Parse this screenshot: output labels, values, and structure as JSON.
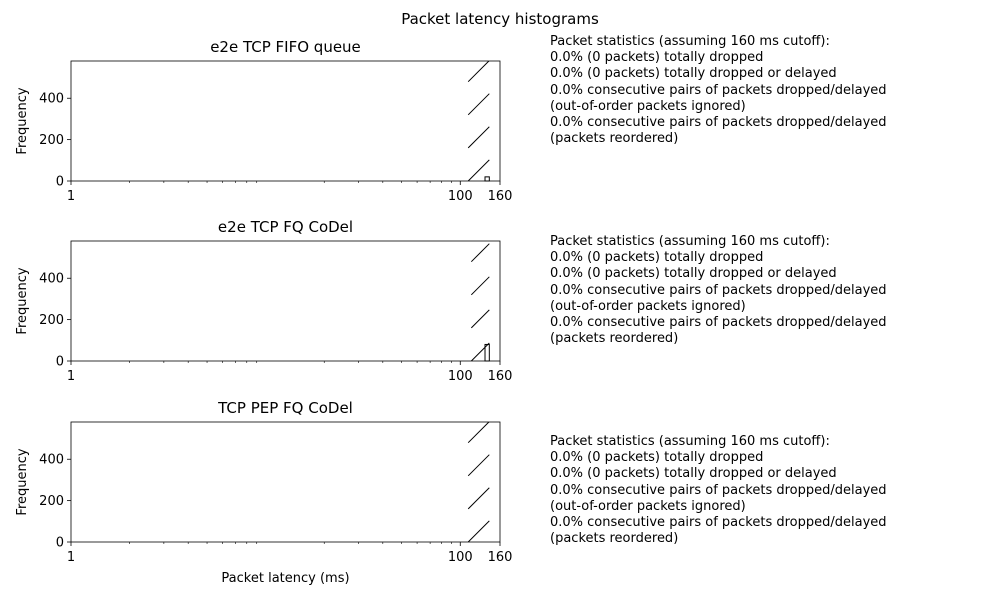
{
  "figure": {
    "suptitle": "Packet latency histograms"
  },
  "chart_data": [
    {
      "type": "histogram",
      "title": "e2e TCP FIFO queue",
      "xlabel": "",
      "ylabel": "Frequency",
      "xscale": "log",
      "xlim": [
        1,
        160
      ],
      "ylim": [
        0,
        580
      ],
      "x_ticks": [
        1,
        100,
        160
      ],
      "y_ticks": [
        0,
        200,
        400
      ],
      "hatch": "/",
      "bars": [
        {
          "x": [
            106,
            113
          ],
          "y": 0
        },
        {
          "x": [
            113,
            120
          ],
          "y": 0
        },
        {
          "x": [
            120,
            127
          ],
          "y": 0
        },
        {
          "x": [
            127,
            134
          ],
          "y": 0
        },
        {
          "x": [
            134,
            141
          ],
          "y": 20
        }
      ],
      "stats": {
        "header": "Packet statistics (assuming 160 ms cutoff):",
        "lines": [
          "0.0% (0 packets) totally dropped",
          "0.0% (0 packets) totally dropped or delayed",
          "0.0% consecutive pairs of packets dropped/delayed",
          "(out-of-order packets ignored)",
          "0.0% consecutive pairs of packets dropped/delayed",
          "(packets reordered)"
        ]
      }
    },
    {
      "type": "histogram",
      "title": "e2e TCP FQ CoDel",
      "xlabel": "",
      "ylabel": "Frequency",
      "xscale": "log",
      "xlim": [
        1,
        160
      ],
      "ylim": [
        0,
        580
      ],
      "x_ticks": [
        1,
        100,
        160
      ],
      "y_ticks": [
        0,
        200,
        400
      ],
      "hatch": "/",
      "bars": [
        {
          "x": [
            110,
            118
          ],
          "y": 0
        },
        {
          "x": [
            118,
            126
          ],
          "y": 0
        },
        {
          "x": [
            126,
            134
          ],
          "y": 0
        },
        {
          "x": [
            134,
            141
          ],
          "y": 80
        }
      ],
      "stats": {
        "header": "Packet statistics (assuming 160 ms cutoff):",
        "lines": [
          "0.0% (0 packets) totally dropped",
          "0.0% (0 packets) totally dropped or delayed",
          "0.0% consecutive pairs of packets dropped/delayed",
          "(out-of-order packets ignored)",
          "0.0% consecutive pairs of packets dropped/delayed",
          "(packets reordered)"
        ]
      }
    },
    {
      "type": "histogram",
      "title": "TCP PEP FQ CoDel",
      "xlabel": "Packet latency (ms)",
      "ylabel": "Frequency",
      "xscale": "log",
      "xlim": [
        1,
        160
      ],
      "ylim": [
        0,
        580
      ],
      "x_ticks": [
        1,
        100,
        160
      ],
      "y_ticks": [
        0,
        200,
        400
      ],
      "hatch": "/",
      "bars": [
        {
          "x": [
            106,
            113
          ],
          "y": 0
        },
        {
          "x": [
            113,
            120
          ],
          "y": 0
        },
        {
          "x": [
            120,
            127
          ],
          "y": 0
        },
        {
          "x": [
            127,
            134
          ],
          "y": 0
        },
        {
          "x": [
            134,
            141
          ],
          "y": 0
        }
      ],
      "stats": {
        "header": "Packet statistics (assuming 160 ms cutoff):",
        "lines": [
          "0.0% (0 packets) totally dropped",
          "0.0% (0 packets) totally dropped or delayed",
          "0.0% consecutive pairs of packets dropped/delayed",
          "(out-of-order packets ignored)",
          "0.0% consecutive pairs of packets dropped/delayed",
          "(packets reordered)"
        ]
      }
    }
  ]
}
